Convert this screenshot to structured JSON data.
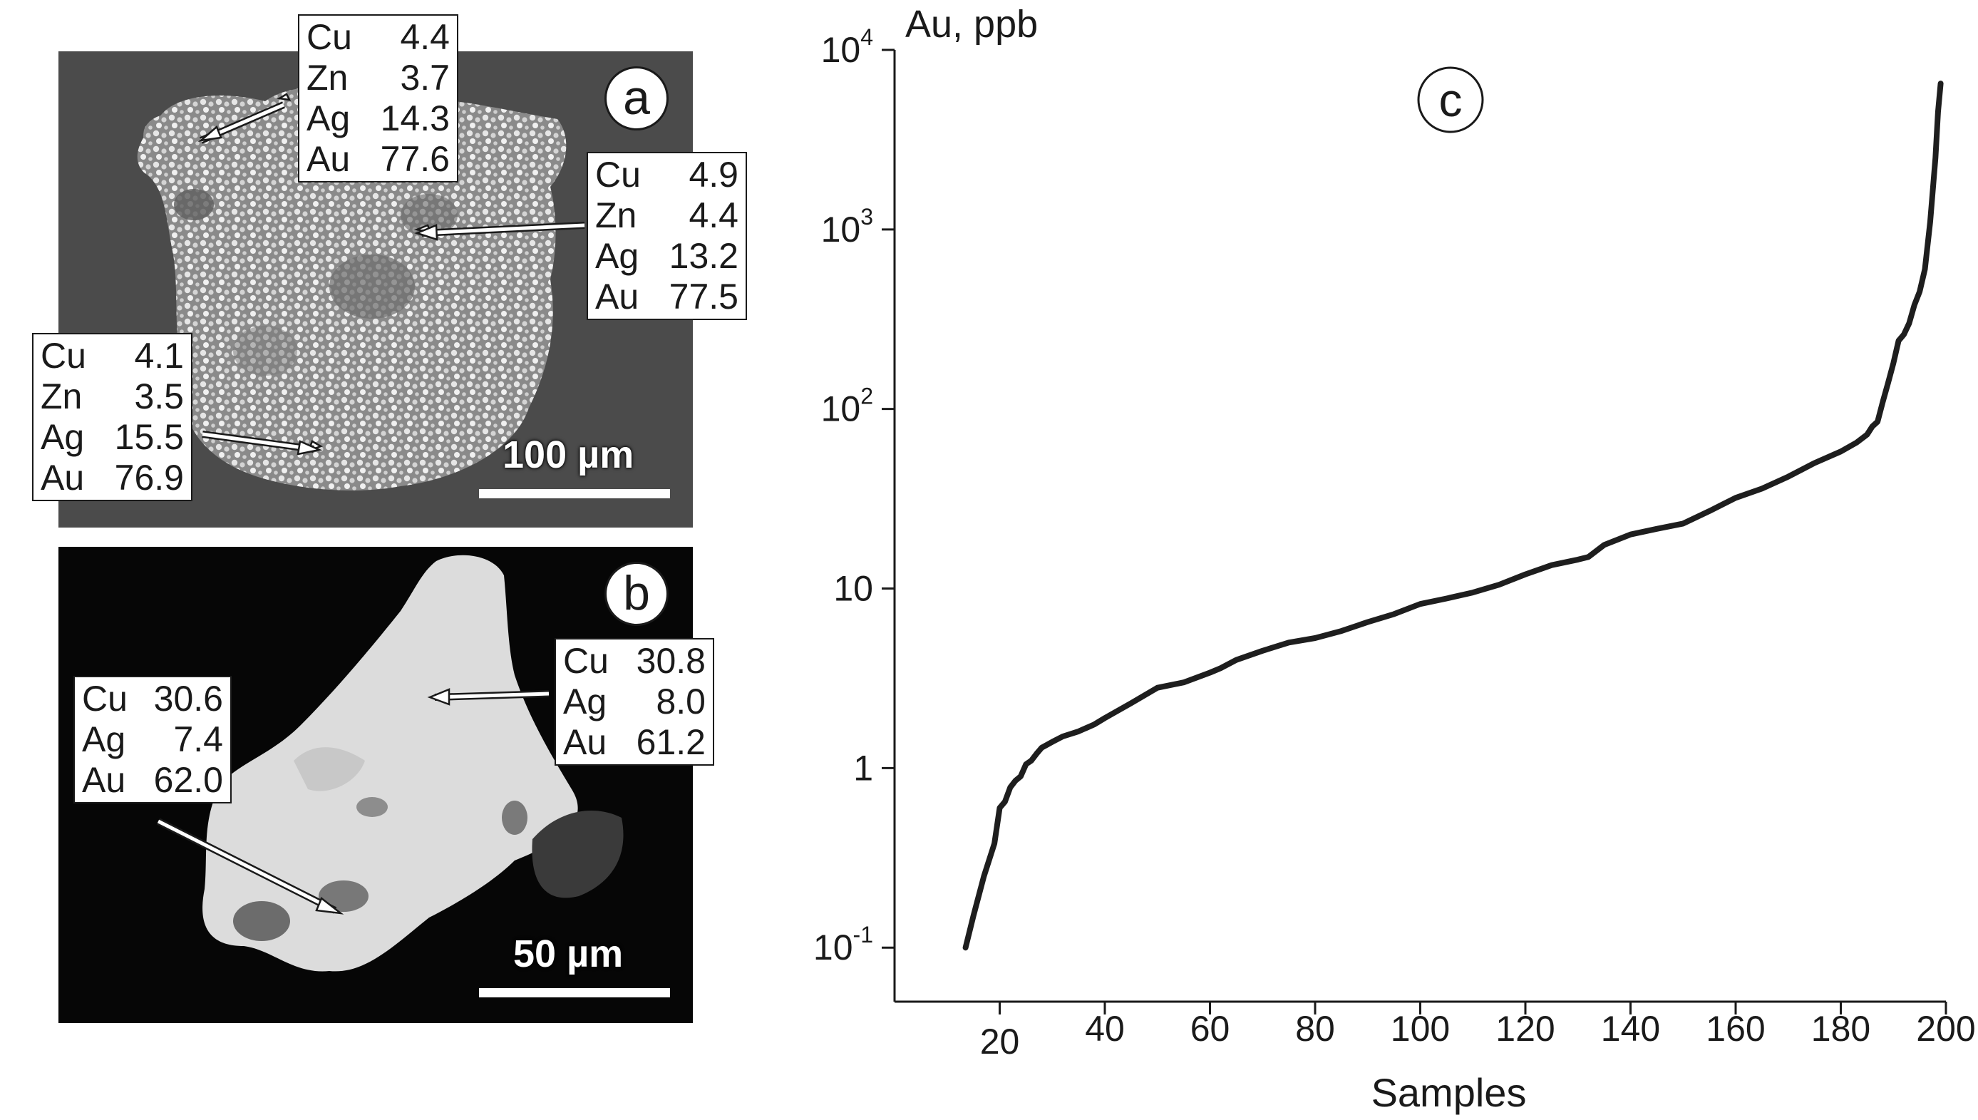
{
  "panel_a": {
    "letter": "a",
    "scale_label": "100 µm",
    "analyses": [
      {
        "rows": [
          {
            "el": "Cu",
            "val": "4.4"
          },
          {
            "el": "Zn",
            "val": "3.7"
          },
          {
            "el": "Ag",
            "val": "14.3"
          },
          {
            "el": "Au",
            "val": "77.6"
          }
        ]
      },
      {
        "rows": [
          {
            "el": "Cu",
            "val": "4.9"
          },
          {
            "el": "Zn",
            "val": "4.4"
          },
          {
            "el": "Ag",
            "val": "13.2"
          },
          {
            "el": "Au",
            "val": "77.5"
          }
        ]
      },
      {
        "rows": [
          {
            "el": "Cu",
            "val": "4.1"
          },
          {
            "el": "Zn",
            "val": "3.5"
          },
          {
            "el": "Ag",
            "val": "15.5"
          },
          {
            "el": "Au",
            "val": "76.9"
          }
        ]
      }
    ]
  },
  "panel_b": {
    "letter": "b",
    "scale_label": "50 µm",
    "analyses": [
      {
        "rows": [
          {
            "el": "Cu",
            "val": "30.6"
          },
          {
            "el": "Ag",
            "val": "7.4"
          },
          {
            "el": "Au",
            "val": "62.0"
          }
        ]
      },
      {
        "rows": [
          {
            "el": "Cu",
            "val": "30.8"
          },
          {
            "el": "Ag",
            "val": "8.0"
          },
          {
            "el": "Au",
            "val": "61.2"
          }
        ]
      }
    ]
  },
  "chart_data": {
    "type": "line",
    "panel_letter": "c",
    "title": "",
    "xlabel": "Samples",
    "ylabel": "Au, ppb",
    "xlim": [
      0,
      200
    ],
    "ylim": [
      0.05,
      10000
    ],
    "yscale": "log",
    "grid": false,
    "x_ticks": [
      20,
      40,
      60,
      80,
      100,
      120,
      140,
      160,
      180,
      200
    ],
    "y_ticks": [
      {
        "value": 0.1,
        "base": "10",
        "exp": "-1"
      },
      {
        "value": 1,
        "base": "1",
        "exp": ""
      },
      {
        "value": 10,
        "base": "10",
        "exp": ""
      },
      {
        "value": 100,
        "base": "10",
        "exp": "2"
      },
      {
        "value": 1000,
        "base": "10",
        "exp": "3"
      },
      {
        "value": 10000,
        "base": "10",
        "exp": "4"
      }
    ],
    "line_color": "#1e1e1e",
    "series": [
      {
        "x": [
          13.5,
          15,
          17,
          19,
          20,
          21,
          22,
          23,
          24,
          25,
          26,
          27,
          28,
          30,
          32,
          35,
          38,
          40,
          45,
          50,
          55,
          60,
          62,
          65,
          70,
          75,
          80,
          85,
          90,
          95,
          100,
          105,
          110,
          115,
          120,
          125,
          130,
          132,
          135,
          140,
          145,
          150,
          155,
          160,
          165,
          170,
          175,
          180,
          183,
          185,
          186,
          187,
          188,
          189,
          190,
          191,
          192,
          193,
          194,
          195,
          196,
          197,
          198,
          198.5,
          199
        ],
        "y": [
          0.1,
          0.15,
          0.25,
          0.38,
          0.6,
          0.65,
          0.78,
          0.85,
          0.9,
          1.05,
          1.1,
          1.2,
          1.3,
          1.4,
          1.5,
          1.6,
          1.75,
          1.9,
          2.3,
          2.8,
          3.0,
          3.4,
          3.6,
          4.0,
          4.5,
          5.0,
          5.3,
          5.8,
          6.5,
          7.2,
          8.2,
          8.8,
          9.5,
          10.5,
          12.0,
          13.5,
          14.5,
          15.0,
          17.5,
          20.0,
          21.5,
          23.0,
          27.0,
          32.0,
          36.0,
          42.0,
          50.0,
          58.0,
          65.0,
          72.0,
          80.0,
          85.0,
          110.0,
          140.0,
          180.0,
          240.0,
          260.0,
          300.0,
          380.0,
          450.0,
          600.0,
          1100.0,
          2500.0,
          4500.0,
          6500.0
        ]
      }
    ]
  }
}
